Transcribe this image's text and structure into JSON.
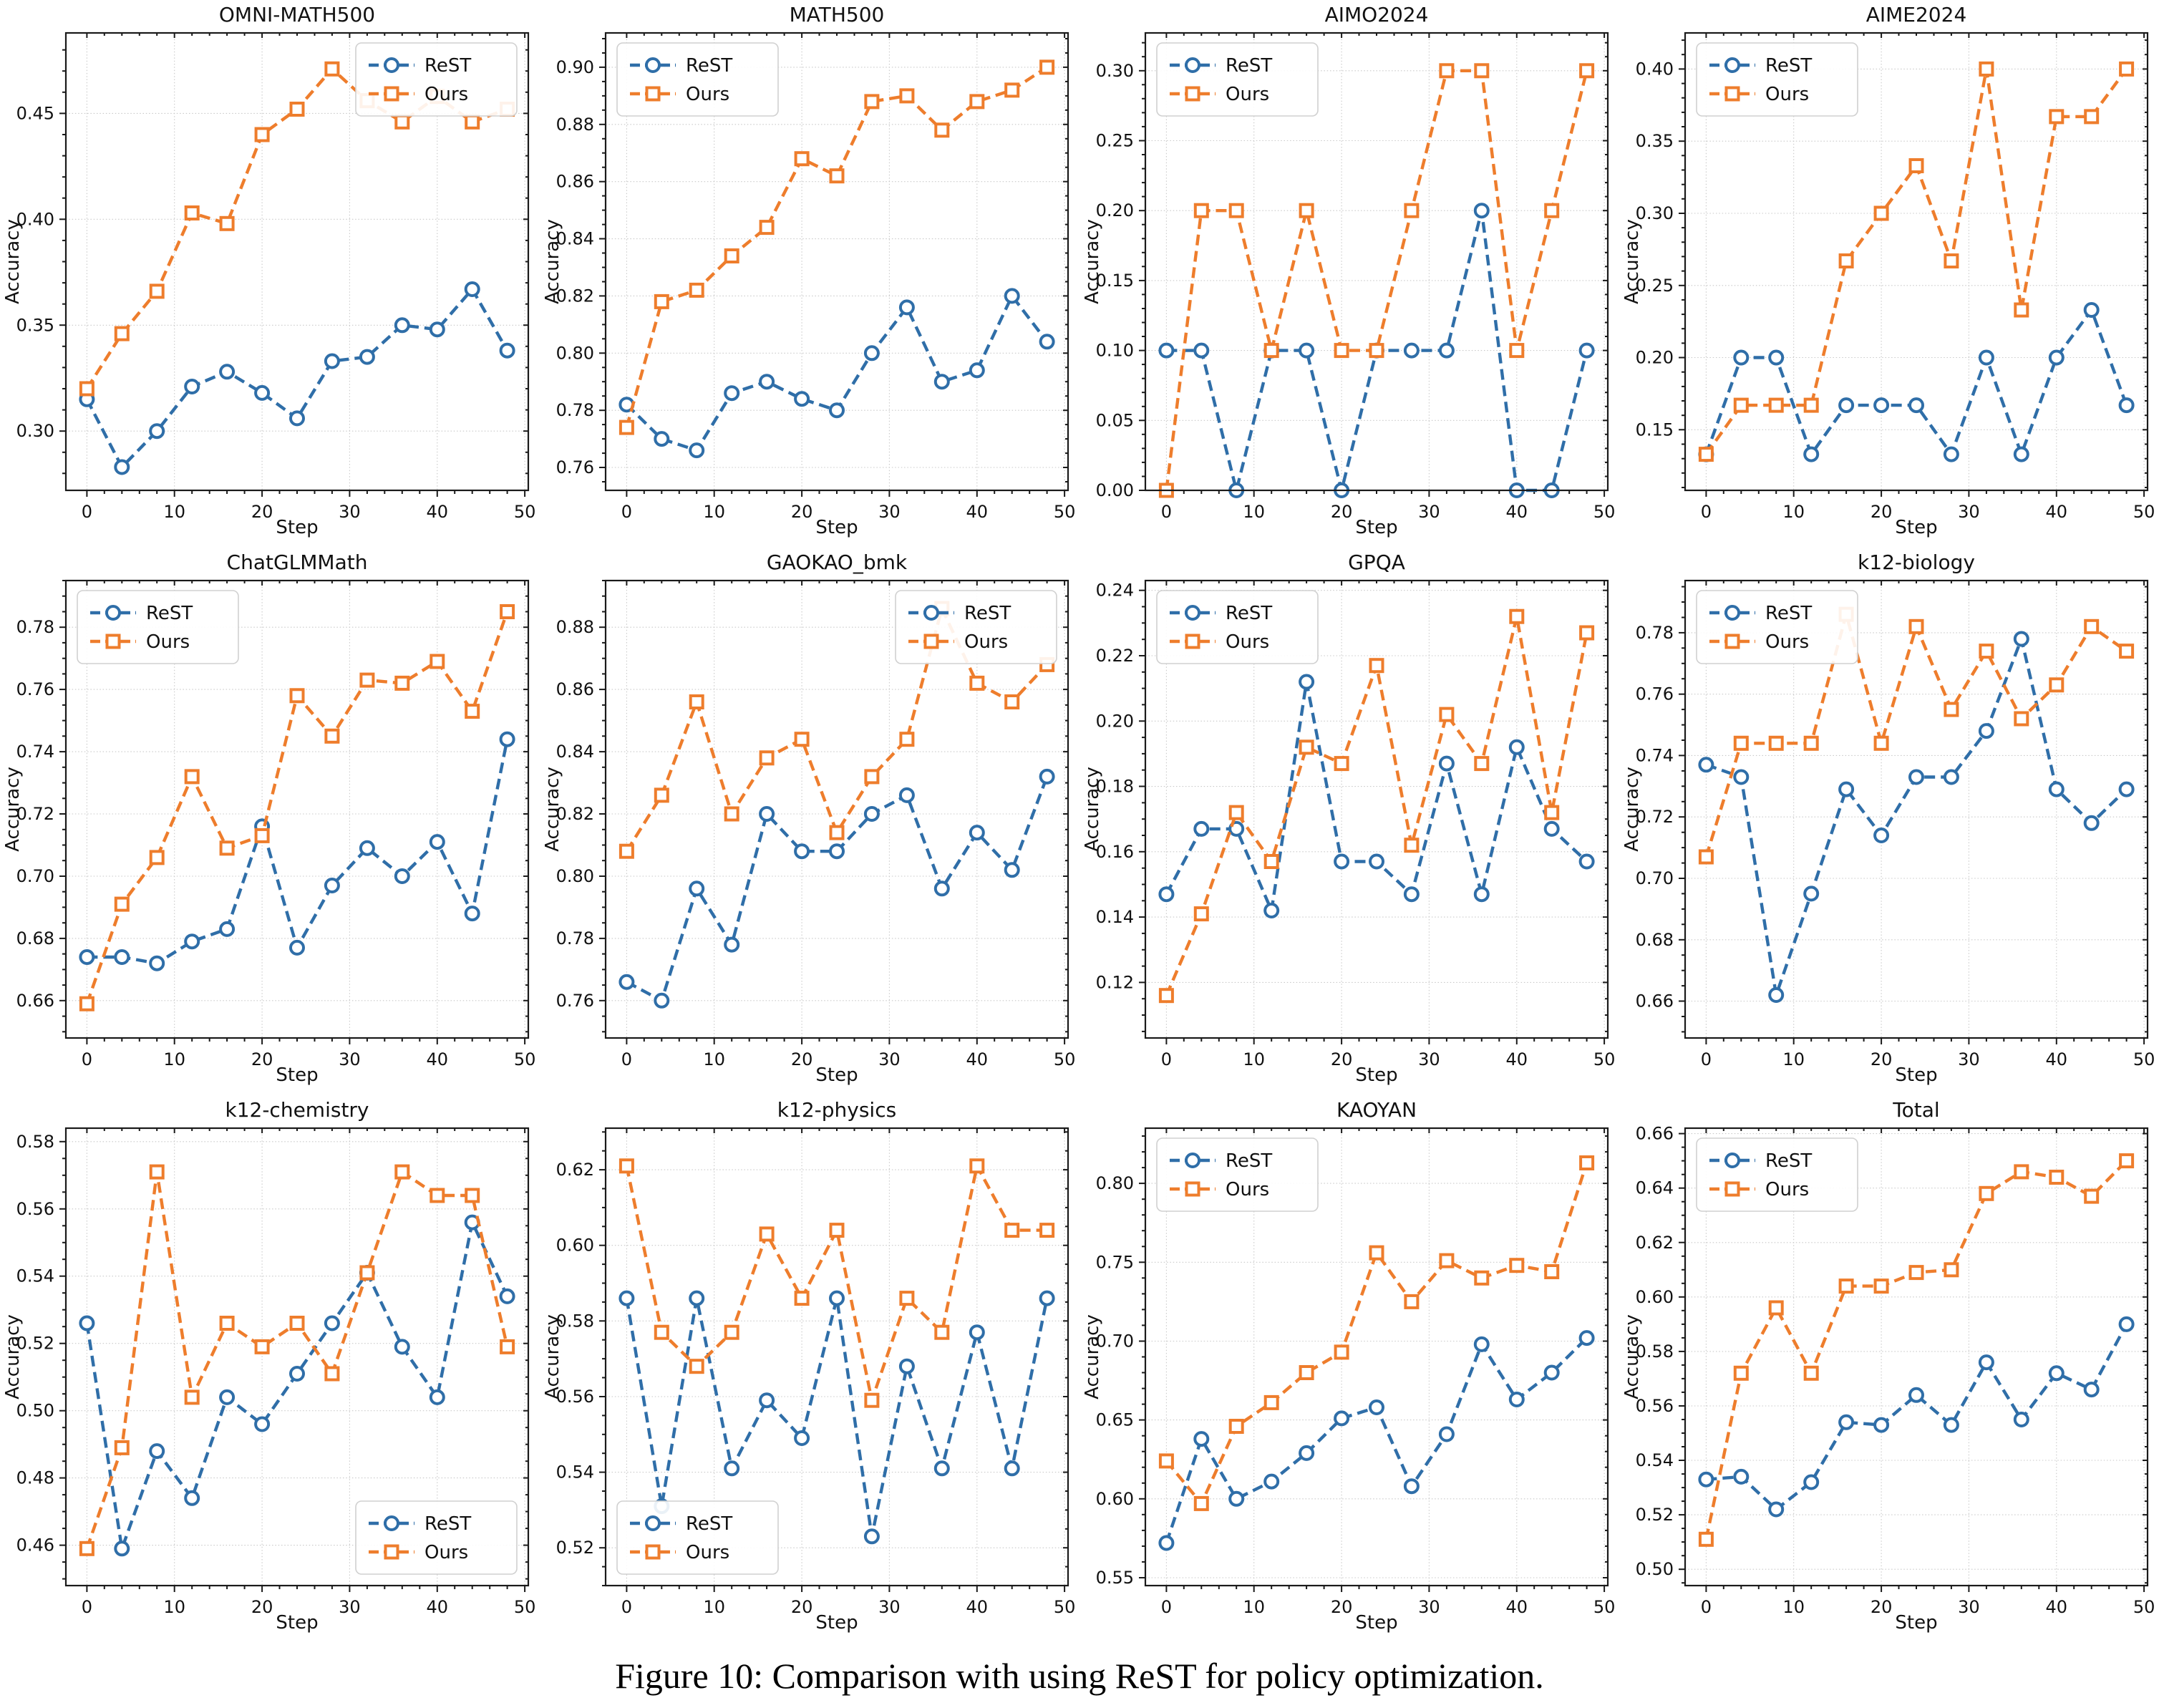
{
  "figure_caption": "Figure 10: Comparison with using ReST for policy optimization.",
  "colors": {
    "rest": "#2f6ea8",
    "ours": "#ee7d2c",
    "grid": "#c9c9c9",
    "spine": "#1a1a1a"
  },
  "legend_labels": [
    "ReST",
    "Ours"
  ],
  "axes": {
    "xlabel": "Step",
    "ylabel": "Accuracy",
    "xticks": [
      0,
      10,
      20,
      30,
      40,
      50
    ]
  },
  "chart_data": [
    {
      "type": "line",
      "title": "OMNI-MATH500",
      "xlabel": "Step",
      "ylabel": "Accuracy",
      "x": [
        0,
        4,
        8,
        12,
        16,
        20,
        24,
        28,
        32,
        36,
        40,
        44,
        48
      ],
      "series": [
        {
          "name": "ReST",
          "values": [
            0.315,
            0.283,
            0.3,
            0.321,
            0.328,
            0.318,
            0.306,
            0.333,
            0.335,
            0.35,
            0.348,
            0.367,
            0.338
          ]
        },
        {
          "name": "Ours",
          "values": [
            0.32,
            0.346,
            0.366,
            0.403,
            0.398,
            0.44,
            0.452,
            0.471,
            0.456,
            0.446,
            0.458,
            0.446,
            0.452
          ]
        }
      ],
      "ylim": [
        0.272,
        0.488
      ],
      "yticks": [
        0.3,
        0.35,
        0.4,
        0.45
      ],
      "legend_pos": "upper-right",
      "grid": true
    },
    {
      "type": "line",
      "title": "MATH500",
      "xlabel": "Step",
      "ylabel": "Accuracy",
      "x": [
        0,
        4,
        8,
        12,
        16,
        20,
        24,
        28,
        32,
        36,
        40,
        44,
        48
      ],
      "series": [
        {
          "name": "ReST",
          "values": [
            0.782,
            0.77,
            0.766,
            0.786,
            0.79,
            0.784,
            0.78,
            0.8,
            0.816,
            0.79,
            0.794,
            0.82,
            0.804
          ]
        },
        {
          "name": "Ours",
          "values": [
            0.774,
            0.818,
            0.822,
            0.834,
            0.844,
            0.868,
            0.862,
            0.888,
            0.89,
            0.878,
            0.888,
            0.892,
            0.9
          ]
        }
      ],
      "ylim": [
        0.752,
        0.912
      ],
      "yticks": [
        0.76,
        0.78,
        0.8,
        0.82,
        0.84,
        0.86,
        0.88,
        0.9
      ],
      "legend_pos": "upper-left",
      "grid": true
    },
    {
      "type": "line",
      "title": "AIMO2024",
      "xlabel": "Step",
      "ylabel": "Accuracy",
      "x": [
        0,
        4,
        8,
        12,
        16,
        20,
        24,
        28,
        32,
        36,
        40,
        44,
        48
      ],
      "series": [
        {
          "name": "ReST",
          "values": [
            0.1,
            0.1,
            0.0,
            0.1,
            0.1,
            0.0,
            0.1,
            0.1,
            0.1,
            0.2,
            0.0,
            0.0,
            0.1
          ]
        },
        {
          "name": "Ours",
          "values": [
            0.0,
            0.2,
            0.2,
            0.1,
            0.2,
            0.1,
            0.1,
            0.2,
            0.3,
            0.3,
            0.1,
            0.2,
            0.3
          ]
        }
      ],
      "ylim": [
        0.0,
        0.327
      ],
      "yticks": [
        0.0,
        0.05,
        0.1,
        0.15,
        0.2,
        0.25,
        0.3
      ],
      "legend_pos": "upper-left",
      "grid": true
    },
    {
      "type": "line",
      "title": "AIME2024",
      "xlabel": "Step",
      "ylabel": "Accuracy",
      "x": [
        0,
        4,
        8,
        12,
        16,
        20,
        24,
        28,
        32,
        36,
        40,
        44,
        48
      ],
      "series": [
        {
          "name": "ReST",
          "values": [
            0.133,
            0.2,
            0.2,
            0.133,
            0.167,
            0.167,
            0.167,
            0.133,
            0.2,
            0.133,
            0.2,
            0.233,
            0.167
          ]
        },
        {
          "name": "Ours",
          "values": [
            0.133,
            0.167,
            0.167,
            0.167,
            0.267,
            0.3,
            0.333,
            0.267,
            0.4,
            0.233,
            0.367,
            0.367,
            0.4
          ]
        }
      ],
      "ylim": [
        0.108,
        0.425
      ],
      "yticks": [
        0.15,
        0.2,
        0.25,
        0.3,
        0.35,
        0.4
      ],
      "legend_pos": "upper-left",
      "grid": true
    },
    {
      "type": "line",
      "title": "ChatGLMMath",
      "xlabel": "Step",
      "ylabel": "Accuracy",
      "x": [
        0,
        4,
        8,
        12,
        16,
        20,
        24,
        28,
        32,
        36,
        40,
        44,
        48
      ],
      "series": [
        {
          "name": "ReST",
          "values": [
            0.674,
            0.674,
            0.672,
            0.679,
            0.683,
            0.716,
            0.677,
            0.697,
            0.709,
            0.7,
            0.711,
            0.688,
            0.744
          ]
        },
        {
          "name": "Ours",
          "values": [
            0.659,
            0.691,
            0.706,
            0.732,
            0.709,
            0.713,
            0.758,
            0.745,
            0.763,
            0.762,
            0.769,
            0.753,
            0.785
          ]
        }
      ],
      "ylim": [
        0.648,
        0.795
      ],
      "yticks": [
        0.66,
        0.68,
        0.7,
        0.72,
        0.74,
        0.76,
        0.78
      ],
      "legend_pos": "upper-left",
      "grid": true
    },
    {
      "type": "line",
      "title": "GAOKAO_bmk",
      "xlabel": "Step",
      "ylabel": "Accuracy",
      "x": [
        0,
        4,
        8,
        12,
        16,
        20,
        24,
        28,
        32,
        36,
        40,
        44,
        48
      ],
      "series": [
        {
          "name": "ReST",
          "values": [
            0.766,
            0.76,
            0.796,
            0.778,
            0.82,
            0.808,
            0.808,
            0.82,
            0.826,
            0.796,
            0.814,
            0.802,
            0.832
          ]
        },
        {
          "name": "Ours",
          "values": [
            0.808,
            0.826,
            0.856,
            0.82,
            0.838,
            0.844,
            0.814,
            0.832,
            0.844,
            0.886,
            0.862,
            0.856,
            0.868
          ]
        }
      ],
      "ylim": [
        0.748,
        0.895
      ],
      "yticks": [
        0.76,
        0.78,
        0.8,
        0.82,
        0.84,
        0.86,
        0.88
      ],
      "legend_pos": "upper-right",
      "grid": true
    },
    {
      "type": "line",
      "title": "GPQA",
      "xlabel": "Step",
      "ylabel": "Accuracy",
      "x": [
        0,
        4,
        8,
        12,
        16,
        20,
        24,
        28,
        32,
        36,
        40,
        44,
        48
      ],
      "series": [
        {
          "name": "ReST",
          "values": [
            0.147,
            0.167,
            0.167,
            0.142,
            0.212,
            0.157,
            0.157,
            0.147,
            0.187,
            0.147,
            0.192,
            0.167,
            0.157
          ]
        },
        {
          "name": "Ours",
          "values": [
            0.116,
            0.141,
            0.172,
            0.157,
            0.192,
            0.187,
            0.217,
            0.162,
            0.202,
            0.187,
            0.232,
            0.172,
            0.227
          ]
        }
      ],
      "ylim": [
        0.103,
        0.243
      ],
      "yticks": [
        0.12,
        0.14,
        0.16,
        0.18,
        0.2,
        0.22,
        0.24
      ],
      "legend_pos": "upper-left",
      "grid": true
    },
    {
      "type": "line",
      "title": "k12-biology",
      "xlabel": "Step",
      "ylabel": "Accuracy",
      "x": [
        0,
        4,
        8,
        12,
        16,
        20,
        24,
        28,
        32,
        36,
        40,
        44,
        48
      ],
      "series": [
        {
          "name": "ReST",
          "values": [
            0.737,
            0.733,
            0.662,
            0.695,
            0.729,
            0.714,
            0.733,
            0.733,
            0.748,
            0.778,
            0.729,
            0.718,
            0.729
          ]
        },
        {
          "name": "Ours",
          "values": [
            0.707,
            0.744,
            0.744,
            0.744,
            0.786,
            0.744,
            0.782,
            0.755,
            0.774,
            0.752,
            0.763,
            0.782,
            0.774
          ]
        }
      ],
      "ylim": [
        0.648,
        0.797
      ],
      "yticks": [
        0.66,
        0.68,
        0.7,
        0.72,
        0.74,
        0.76,
        0.78
      ],
      "legend_pos": "upper-left",
      "grid": true
    },
    {
      "type": "line",
      "title": "k12-chemistry",
      "xlabel": "Step",
      "ylabel": "Accuracy",
      "x": [
        0,
        4,
        8,
        12,
        16,
        20,
        24,
        28,
        32,
        36,
        40,
        44,
        48
      ],
      "series": [
        {
          "name": "ReST",
          "values": [
            0.526,
            0.459,
            0.488,
            0.474,
            0.504,
            0.496,
            0.511,
            0.526,
            0.541,
            0.519,
            0.504,
            0.556,
            0.534
          ]
        },
        {
          "name": "Ours",
          "values": [
            0.459,
            0.489,
            0.571,
            0.504,
            0.526,
            0.519,
            0.526,
            0.511,
            0.541,
            0.571,
            0.564,
            0.564,
            0.519
          ]
        }
      ],
      "ylim": [
        0.448,
        0.584
      ],
      "yticks": [
        0.46,
        0.48,
        0.5,
        0.52,
        0.54,
        0.56,
        0.58
      ],
      "legend_pos": "lower-right",
      "grid": true
    },
    {
      "type": "line",
      "title": "k12-physics",
      "xlabel": "Step",
      "ylabel": "Accuracy",
      "x": [
        0,
        4,
        8,
        12,
        16,
        20,
        24,
        28,
        32,
        36,
        40,
        44,
        48
      ],
      "series": [
        {
          "name": "ReST",
          "values": [
            0.586,
            0.531,
            0.586,
            0.541,
            0.559,
            0.549,
            0.586,
            0.523,
            0.568,
            0.541,
            0.577,
            0.541,
            0.586
          ]
        },
        {
          "name": "Ours",
          "values": [
            0.621,
            0.577,
            0.568,
            0.577,
            0.603,
            0.586,
            0.604,
            0.559,
            0.586,
            0.577,
            0.621,
            0.604,
            0.604
          ]
        }
      ],
      "ylim": [
        0.51,
        0.631
      ],
      "yticks": [
        0.52,
        0.54,
        0.56,
        0.58,
        0.6,
        0.62
      ],
      "legend_pos": "lower-left",
      "grid": true
    },
    {
      "type": "line",
      "title": "KAOYAN",
      "xlabel": "Step",
      "ylabel": "Accuracy",
      "x": [
        0,
        4,
        8,
        12,
        16,
        20,
        24,
        28,
        32,
        36,
        40,
        44,
        48
      ],
      "series": [
        {
          "name": "ReST",
          "values": [
            0.572,
            0.638,
            0.6,
            0.611,
            0.629,
            0.651,
            0.658,
            0.608,
            0.641,
            0.698,
            0.663,
            0.68,
            0.702
          ]
        },
        {
          "name": "Ours",
          "values": [
            0.624,
            0.597,
            0.646,
            0.661,
            0.68,
            0.693,
            0.756,
            0.725,
            0.751,
            0.74,
            0.748,
            0.744,
            0.813
          ]
        }
      ],
      "ylim": [
        0.545,
        0.835
      ],
      "yticks": [
        0.55,
        0.6,
        0.65,
        0.7,
        0.75,
        0.8
      ],
      "legend_pos": "upper-left",
      "grid": true
    },
    {
      "type": "line",
      "title": "Total",
      "xlabel": "Step",
      "ylabel": "Accuracy",
      "x": [
        0,
        4,
        8,
        12,
        16,
        20,
        24,
        28,
        32,
        36,
        40,
        44,
        48
      ],
      "series": [
        {
          "name": "ReST",
          "values": [
            0.533,
            0.534,
            0.522,
            0.532,
            0.554,
            0.553,
            0.564,
            0.553,
            0.576,
            0.555,
            0.572,
            0.566,
            0.59
          ]
        },
        {
          "name": "Ours",
          "values": [
            0.511,
            0.572,
            0.596,
            0.572,
            0.604,
            0.604,
            0.609,
            0.61,
            0.638,
            0.646,
            0.644,
            0.637,
            0.65
          ]
        }
      ],
      "ylim": [
        0.494,
        0.662
      ],
      "yticks": [
        0.5,
        0.52,
        0.54,
        0.56,
        0.58,
        0.6,
        0.62,
        0.64,
        0.66
      ],
      "legend_pos": "upper-left",
      "grid": true
    }
  ]
}
